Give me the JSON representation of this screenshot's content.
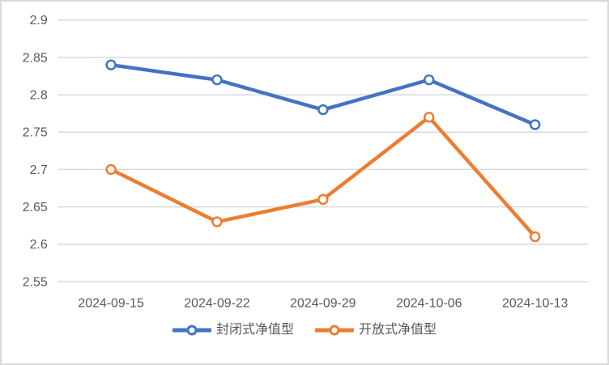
{
  "chart_data": {
    "type": "line",
    "categories": [
      "2024-09-15",
      "2024-09-22",
      "2024-09-29",
      "2024-10-06",
      "2024-10-13"
    ],
    "series": [
      {
        "name": "封闭式净值型",
        "color": "#4472C4",
        "values": [
          2.84,
          2.82,
          2.78,
          2.82,
          2.76
        ]
      },
      {
        "name": "开放式净值型",
        "color": "#ED7D31",
        "values": [
          2.7,
          2.63,
          2.66,
          2.77,
          2.61
        ]
      }
    ],
    "ylim": [
      2.55,
      2.9
    ],
    "ytick_labels": [
      "2.9",
      "2.85",
      "2.8",
      "2.75",
      "2.7",
      "2.65",
      "2.6",
      "2.55"
    ],
    "xlabel": "",
    "ylabel": "",
    "title": "",
    "grid": true,
    "legend_position": "bottom",
    "marker_style": "open-circle",
    "axis_text_color": "#595959",
    "grid_color": "#D9D9D9",
    "frame_color": "#D9D9D9"
  }
}
